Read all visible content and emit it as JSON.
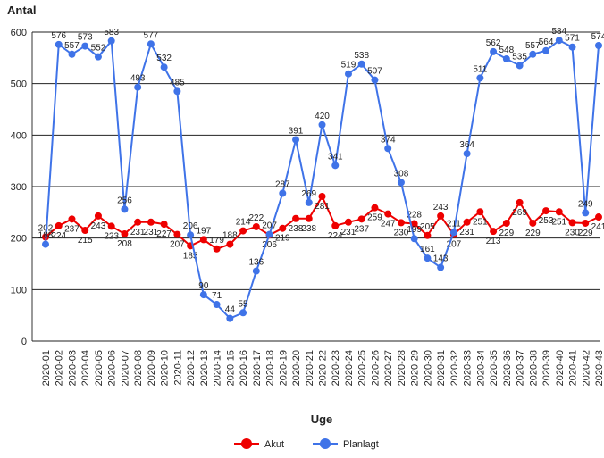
{
  "chart_data": {
    "type": "line",
    "y_label": "Antal",
    "x_label": "Uge",
    "categories": [
      "2020-01",
      "2020-02",
      "2020-03",
      "2020-04",
      "2020-05",
      "2020-06",
      "2020-07",
      "2020-08",
      "2020-09",
      "2020-10",
      "2020-11",
      "2020-12",
      "2020-13",
      "2020-14",
      "2020-15",
      "2020-16",
      "2020-17",
      "2020-18",
      "2020-19",
      "2020-20",
      "2020-21",
      "2020-22",
      "2020-23",
      "2020-24",
      "2020-25",
      "2020-26",
      "2020-27",
      "2020-28",
      "2020-29",
      "2020-30",
      "2020-31",
      "2020-32",
      "2020-33",
      "2020-34",
      "2020-35",
      "2020-36",
      "2020-37",
      "2020-38",
      "2020-39",
      "2020-40",
      "2020-41",
      "2020-42",
      "2020-43"
    ],
    "series": [
      {
        "name": "Akut",
        "color": "#ee0000",
        "values": [
          202,
          224,
          237,
          215,
          243,
          223,
          208,
          231,
          231,
          227,
          207,
          185,
          197,
          179,
          188,
          214,
          222,
          206,
          219,
          238,
          238,
          281,
          224,
          231,
          237,
          259,
          247,
          230,
          228,
          205,
          243,
          207,
          231,
          251,
          213,
          229,
          269,
          229,
          253,
          251,
          230,
          229,
          241
        ]
      },
      {
        "name": "Planlagt",
        "color": "#3f73e8",
        "values": [
          188,
          576,
          557,
          573,
          552,
          583,
          256,
          493,
          577,
          532,
          485,
          206,
          90,
          71,
          44,
          55,
          136,
          207,
          287,
          391,
          269,
          420,
          341,
          519,
          538,
          507,
          374,
          308,
          199,
          161,
          143,
          211,
          364,
          511,
          562,
          548,
          535,
          557,
          564,
          584,
          571,
          249,
          574
        ]
      }
    ],
    "ylim": [
      0,
      600
    ],
    "yticks": [
      0,
      100,
      200,
      300,
      400,
      500,
      600
    ],
    "grid": true
  }
}
